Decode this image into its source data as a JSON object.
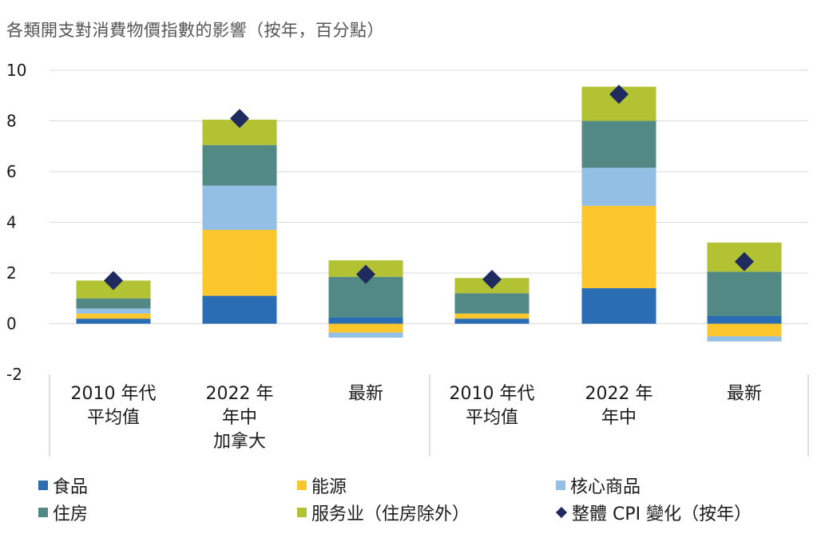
{
  "title": "各類開支對消費物價指數的影響（按年，百分點）",
  "colors": {
    "food": "#2a6db5",
    "energy": "#fbc72c",
    "core_goods": "#94bfe4",
    "shelter": "#538984",
    "services": "#b2c233",
    "cpi": "#1f2a5e",
    "grid": "#d9d9d9",
    "divider": "#bfbfbf"
  },
  "chart_data": {
    "type": "bar",
    "stacked": true,
    "ylim": [
      -2,
      10
    ],
    "yticks": [
      -2,
      0,
      2,
      4,
      6,
      8,
      10
    ],
    "grid": true,
    "legend_position": "bottom",
    "categories": [
      [
        "2010 年代",
        "平均值"
      ],
      [
        "2022 年",
        "年中"
      ],
      [
        "最新"
      ],
      [
        "2010 年代",
        "平均值"
      ],
      [
        "2022 年",
        "年中"
      ],
      [
        "最新"
      ]
    ],
    "groups": [
      {
        "label": "加拿大",
        "categories": [
          0,
          1,
          2
        ]
      },
      {
        "label": "",
        "categories": [
          3,
          4,
          5
        ]
      }
    ],
    "series": [
      {
        "name": "食品",
        "key": "food",
        "values": [
          0.2,
          1.1,
          0.25,
          0.2,
          1.4,
          0.3
        ]
      },
      {
        "name": "能源",
        "key": "energy",
        "values": [
          0.2,
          2.6,
          -0.35,
          0.2,
          3.25,
          -0.5
        ]
      },
      {
        "name": "核心商品",
        "key": "core_goods",
        "values": [
          0.2,
          1.75,
          -0.2,
          0.0,
          1.5,
          -0.2
        ]
      },
      {
        "name": "住房",
        "key": "shelter",
        "values": [
          0.4,
          1.6,
          1.6,
          0.8,
          1.85,
          1.75
        ]
      },
      {
        "name": "服务业（住房除外）",
        "key": "services",
        "values": [
          0.7,
          1.0,
          0.65,
          0.6,
          1.35,
          1.15
        ]
      }
    ],
    "cpi": {
      "name": "整體 CPI 變化（按年）",
      "values": [
        1.7,
        8.1,
        1.95,
        1.75,
        9.05,
        2.45
      ]
    }
  },
  "legend": [
    {
      "label": "食品",
      "key": "food",
      "shape": "square"
    },
    {
      "label": "能源",
      "key": "energy",
      "shape": "square"
    },
    {
      "label": "核心商品",
      "key": "core_goods",
      "shape": "square"
    },
    {
      "label": "住房",
      "key": "shelter",
      "shape": "square"
    },
    {
      "label": "服务业（住房除外）",
      "key": "services",
      "shape": "square"
    },
    {
      "label": "整體 CPI 變化（按年）",
      "key": "cpi",
      "shape": "diamond"
    }
  ]
}
